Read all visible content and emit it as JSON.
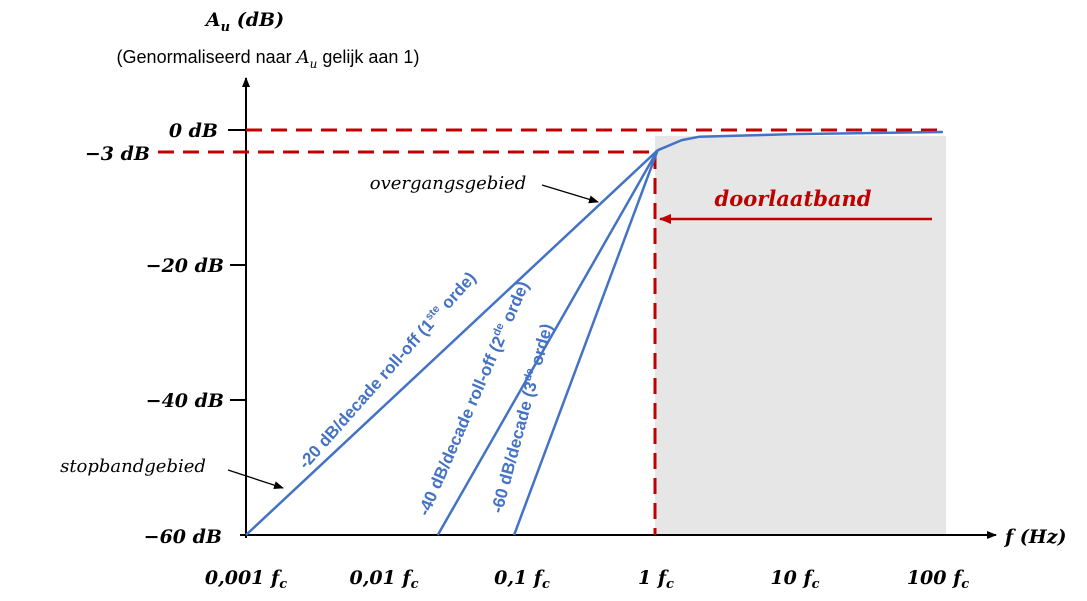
{
  "y_axis": {
    "title_main": "A",
    "title_sub": "u",
    "title_unit": " (dB)",
    "subtitle_pre": "(Genormaliseerd naar ",
    "subtitle_var": "A",
    "subtitle_var_sub": "u",
    "subtitle_post": " gelijk aan 1)",
    "ticks": [
      {
        "value": 0,
        "label": "0 dB"
      },
      {
        "value": -3,
        "label": "−3 dB"
      },
      {
        "value": -20,
        "label": "−20 dB"
      },
      {
        "value": -40,
        "label": "−40 dB"
      },
      {
        "value": -60,
        "label": "−60 dB"
      }
    ]
  },
  "x_axis": {
    "title": "f (Hz)",
    "ticks": [
      {
        "decade": -3,
        "label": "0,001 f",
        "sub": "c"
      },
      {
        "decade": -2,
        "label": "0,01 f",
        "sub": "c"
      },
      {
        "decade": -1,
        "label": "0,1 f",
        "sub": "c"
      },
      {
        "decade": 0,
        "label": "1 f",
        "sub": "c"
      },
      {
        "decade": 1,
        "label": "10 f",
        "sub": "c"
      },
      {
        "decade": 2,
        "label": "100 f",
        "sub": "c"
      }
    ]
  },
  "labels": {
    "passband": "doorlaatband",
    "transition": "overgangsgebied",
    "stopband": "stopbandgebied",
    "order1_pre": "-20 dB/decade roll-off (1",
    "order1_sup": "ste",
    "order1_post": " orde)",
    "order2_pre": "-40 dB/decade roll-off (2",
    "order2_sup": "de",
    "order2_post": " orde)",
    "order3_pre": "-60 dB/decade (3",
    "order3_sup": "de",
    "order3_post": " orde)"
  },
  "colors": {
    "curve": "#4472c4",
    "dashed": "#c00000",
    "passband_text": "#c00000",
    "shade": "#e6e6e6",
    "axis": "#000000"
  },
  "chart_data": {
    "type": "line",
    "x_scale": "log",
    "x_unit": "f / fc",
    "ylim": [
      -60,
      0
    ],
    "xlim_decades": [
      -3,
      2
    ],
    "series": [
      {
        "x": [
          0.001,
          1
        ],
        "y": [
          -60,
          -3
        ]
      },
      {
        "x": [
          0.025,
          1
        ],
        "y": [
          -60,
          -3
        ]
      },
      {
        "x": [
          0.09,
          1
        ],
        "y": [
          -60,
          -3
        ]
      },
      {
        "x": [
          1,
          1.5,
          2,
          10,
          120
        ],
        "y": [
          -3,
          -1.5,
          -1,
          -0.6,
          -0.3
        ]
      }
    ],
    "reference_lines": [
      {
        "orientation": "horizontal",
        "y": 0
      },
      {
        "orientation": "horizontal",
        "y": -3
      },
      {
        "orientation": "vertical",
        "x": 1
      }
    ]
  }
}
